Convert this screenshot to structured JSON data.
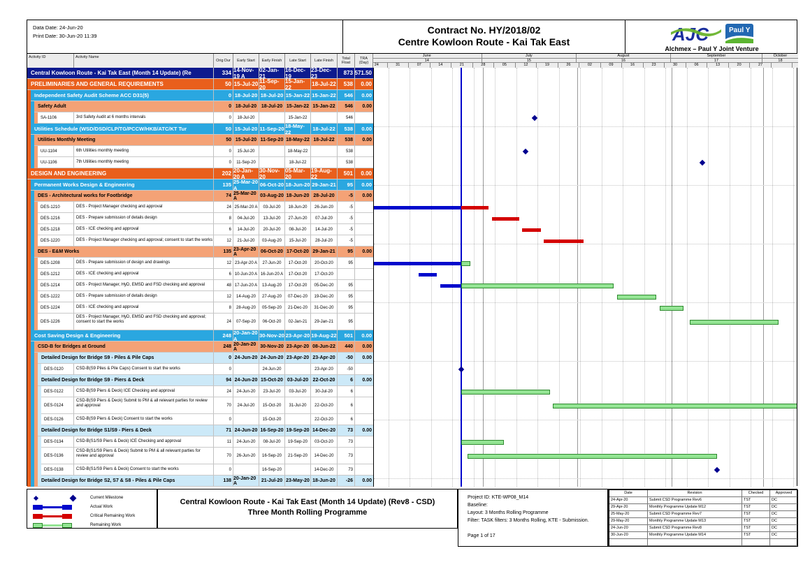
{
  "header": {
    "data_date": "Data Date: 24-Jun-20",
    "print_date": "Print Date: 30-Jun-20 11:39",
    "title_line1": "Contract No. HY/2018/02",
    "title_line2": "Centre Kowloon Route - Kai Tak East",
    "logo_ajc_text": "AJC",
    "logo_pauly_text": "Paul Y",
    "jv_name": "Alchmex – Paul Y Joint Venture"
  },
  "columns": [
    "Activity ID",
    "Activity Name",
    "Orig Dur",
    "Early Start",
    "Early Finish",
    "Late Start",
    "Late Finish",
    "Total Float",
    "TRA (Day)"
  ],
  "timeline": {
    "months": [
      {
        "label": "June",
        "num": "14",
        "start": "2020-05-26",
        "end": "2020-07-01"
      },
      {
        "label": "July",
        "num": "15",
        "start": "2020-07-01",
        "end": "2020-08-01"
      },
      {
        "label": "August",
        "num": "16",
        "start": "2020-08-01",
        "end": "2020-09-01"
      },
      {
        "label": "September",
        "num": "17",
        "start": "2020-09-01",
        "end": "2020-10-01"
      },
      {
        "label": "October",
        "num": "18",
        "start": "2020-10-01",
        "end": "2020-10-13"
      }
    ],
    "weeks": [
      {
        "label": "24",
        "start": "2020-05-24"
      },
      {
        "label": "31",
        "start": "2020-05-31"
      },
      {
        "label": "07",
        "start": "2020-06-07"
      },
      {
        "label": "14",
        "start": "2020-06-14"
      },
      {
        "label": "21",
        "start": "2020-06-21"
      },
      {
        "label": "28",
        "start": "2020-06-28"
      },
      {
        "label": "05",
        "start": "2020-07-05"
      },
      {
        "label": "12",
        "start": "2020-07-12"
      },
      {
        "label": "19",
        "start": "2020-07-19"
      },
      {
        "label": "26",
        "start": "2020-07-26"
      },
      {
        "label": "02",
        "start": "2020-08-02"
      },
      {
        "label": "09",
        "start": "2020-08-09"
      },
      {
        "label": "16",
        "start": "2020-08-16"
      },
      {
        "label": "23",
        "start": "2020-08-23"
      },
      {
        "label": "30",
        "start": "2020-08-30"
      },
      {
        "label": "06",
        "start": "2020-09-06"
      },
      {
        "label": "13",
        "start": "2020-09-13"
      },
      {
        "label": "20",
        "start": "2020-09-20"
      },
      {
        "label": "27",
        "start": "2020-09-27"
      },
      {
        "label": "",
        "start": "2020-10-04"
      },
      {
        "label": "",
        "start": "2020-10-11"
      }
    ],
    "data_date": "2020-06-24"
  },
  "rows": [
    {
      "type": "project",
      "strips": 0,
      "id": "",
      "name": "Central Kowloon Route - Kai Tak East (Month 14 Update) (Re",
      "dur": "334",
      "es": "14-Nov-19 A",
      "ef": "02-Jan-21",
      "ls": "16-Dec-19",
      "lf": "23-Dec-23",
      "tf": "873",
      "tra": "571.50"
    },
    {
      "type": "l1",
      "strips": 0,
      "id": "",
      "name": "PRELIMINARIES AND GENERAL REQUIREMENTS",
      "dur": "50",
      "es": "15-Jul-20",
      "ef": "11-Sep-20",
      "ls": "15-Jan-22",
      "lf": "18-Jul-22",
      "tf": "538",
      "tra": "0.00"
    },
    {
      "type": "l2",
      "strips": 1,
      "id": "",
      "name": "Independent Safety Audit Scheme ACC D31(5)",
      "dur": "0",
      "es": "18-Jul-20",
      "ef": "18-Jul-20",
      "ls": "15-Jan-22",
      "lf": "15-Jan-22",
      "tf": "546",
      "tra": "0.00"
    },
    {
      "type": "l3",
      "strips": 2,
      "id": "",
      "name": "Safety Adult",
      "dur": "0",
      "es": "18-Jul-20",
      "ef": "18-Jul-20",
      "ls": "15-Jan-22",
      "lf": "15-Jan-22",
      "tf": "546",
      "tra": "0.00"
    },
    {
      "type": "task",
      "strips": 3,
      "id": "SA-1106",
      "name": "3rd Safety Audit at 6 months intervals",
      "dur": "0",
      "es": "18-Jul-20",
      "ef": "",
      "ls": "15-Jan-22",
      "lf": "",
      "tf": "546",
      "tra": ""
    },
    {
      "type": "l2",
      "strips": 1,
      "id": "",
      "name": "Utilities Schedule (WSD/DSD/CLP/TG/PCCW/HKB/ATC/KT Tur",
      "dur": "50",
      "es": "15-Jul-20",
      "ef": "11-Sep-20",
      "ls": "18-May-22",
      "lf": "18-Jul-22",
      "tf": "538",
      "tra": "0.00"
    },
    {
      "type": "l3",
      "strips": 2,
      "id": "",
      "name": "Utilities Monthly Meeting",
      "dur": "50",
      "es": "15-Jul-20",
      "ef": "11-Sep-20",
      "ls": "18-May-22",
      "lf": "18-Jul-22",
      "tf": "538",
      "tra": "0.00"
    },
    {
      "type": "task",
      "strips": 3,
      "id": "UU-1104",
      "name": "6th Utilities monthly meeting",
      "dur": "0",
      "es": "15-Jul-20",
      "ef": "",
      "ls": "18-May-22",
      "lf": "",
      "tf": "538",
      "tra": ""
    },
    {
      "type": "task",
      "strips": 3,
      "id": "UU-1106",
      "name": "7th Utilities monthly meeting",
      "dur": "0",
      "es": "11-Sep-20",
      "ef": "",
      "ls": "18-Jul-22",
      "lf": "",
      "tf": "538",
      "tra": ""
    },
    {
      "type": "l1",
      "strips": 0,
      "id": "",
      "name": "DESIGN AND ENGINEERING",
      "dur": "202",
      "es": "20-Jan-20 A",
      "ef": "30-Nov-20",
      "ls": "05-Mar-20",
      "lf": "19-Aug-22",
      "tf": "501",
      "tra": "0.00"
    },
    {
      "type": "l2",
      "strips": 1,
      "id": "",
      "name": "Permanent Works Design & Engineering",
      "dur": "135",
      "es": "25-Mar-20 A",
      "ef": "06-Oct-20",
      "ls": "18-Jun-20",
      "lf": "29-Jan-21",
      "tf": "95",
      "tra": "0.00"
    },
    {
      "type": "l3",
      "strips": 2,
      "id": "",
      "name": "DES - Architectural works for Footbridge",
      "dur": "74",
      "es": "25-Mar-20 A",
      "ef": "03-Aug-20",
      "ls": "18-Jun-20",
      "lf": "28-Jul-20",
      "tf": "-5",
      "tra": "0.00"
    },
    {
      "type": "task",
      "strips": 3,
      "id": "DES-1210",
      "name": "DES - Project Manager checking and approval",
      "dur": "24",
      "es": "25-Mar-20 A",
      "ef": "03-Jul-20",
      "ls": "18-Jun-20",
      "lf": "26-Jun-20",
      "tf": "-5",
      "tra": ""
    },
    {
      "type": "task",
      "strips": 3,
      "id": "DES-1216",
      "name": "DES - Prepare submission of details design",
      "dur": "8",
      "es": "04-Jul-20",
      "ef": "13-Jul-20",
      "ls": "27-Jun-20",
      "lf": "07-Jul-20",
      "tf": "-5",
      "tra": ""
    },
    {
      "type": "task",
      "strips": 3,
      "id": "DES-1218",
      "name": "DES - ICE checking and approval",
      "dur": "6",
      "es": "14-Jul-20",
      "ef": "20-Jul-20",
      "ls": "08-Jul-20",
      "lf": "14-Jul-20",
      "tf": "-5",
      "tra": ""
    },
    {
      "type": "task",
      "strips": 3,
      "id": "DES-1220",
      "name": "DES - Project Manager checking and approval; consent to start the works",
      "dur": "12",
      "es": "21-Jul-20",
      "ef": "03-Aug-20",
      "ls": "15-Jul-20",
      "lf": "28-Jul-20",
      "tf": "-5",
      "tra": ""
    },
    {
      "type": "l3",
      "strips": 2,
      "id": "",
      "name": "DES - E&M Works",
      "dur": "135",
      "es": "23-Apr-20 A",
      "ef": "06-Oct-20",
      "ls": "17-Oct-20",
      "lf": "29-Jan-21",
      "tf": "95",
      "tra": "0.00"
    },
    {
      "type": "task",
      "strips": 3,
      "id": "DES-1208",
      "name": "DES - Prepare submission of design and drawings",
      "dur": "12",
      "es": "23-Apr-20 A",
      "ef": "27-Jun-20",
      "ls": "17-Oct-20",
      "lf": "20-Oct-20",
      "tf": "95",
      "tra": ""
    },
    {
      "type": "task",
      "strips": 3,
      "id": "DES-1212",
      "name": "DES - ICE checking and approval",
      "dur": "6",
      "es": "10-Jun-20 A",
      "ef": "16-Jun-20 A",
      "ls": "17-Oct-20",
      "lf": "17-Oct-20",
      "tf": "",
      "tra": ""
    },
    {
      "type": "task",
      "strips": 3,
      "id": "DES-1214",
      "name": "DES - Project Manager, HyD, EMSD and FSD checking and approval",
      "dur": "48",
      "es": "17-Jun-20 A",
      "ef": "13-Aug-20",
      "ls": "17-Oct-20",
      "lf": "05-Dec-20",
      "tf": "95",
      "tra": ""
    },
    {
      "type": "task",
      "strips": 3,
      "id": "DES-1222",
      "name": "DES - Prepare submission of details design",
      "dur": "12",
      "es": "14-Aug-20",
      "ef": "27-Aug-20",
      "ls": "07-Dec-20",
      "lf": "19-Dec-20",
      "tf": "95",
      "tra": ""
    },
    {
      "type": "task",
      "strips": 3,
      "id": "DES-1224",
      "name": "DES - ICE checking and approval",
      "dur": "8",
      "es": "28-Aug-20",
      "ef": "05-Sep-20",
      "ls": "21-Dec-20",
      "lf": "31-Dec-20",
      "tf": "95",
      "tra": ""
    },
    {
      "type": "task",
      "strips": 3,
      "tall": true,
      "id": "DES-1226",
      "name": "DES - Project Manager, HyD, EMSD and FSD checking and approval; consent to start the works",
      "dur": "24",
      "es": "07-Sep-20",
      "ef": "06-Oct-20",
      "ls": "02-Jan-21",
      "lf": "29-Jan-21",
      "tf": "95",
      "tra": ""
    },
    {
      "type": "l2",
      "strips": 1,
      "id": "",
      "name": "Cost Saving Design & Engineering",
      "dur": "248",
      "es": "20-Jan-20 A",
      "ef": "30-Nov-20",
      "ls": "23-Apr-20",
      "lf": "19-Aug-22",
      "tf": "501",
      "tra": "0.00"
    },
    {
      "type": "l3",
      "strips": 2,
      "id": "",
      "name": "CSD-B for Bridges at Ground",
      "dur": "248",
      "es": "20-Jan-20 A",
      "ef": "30-Nov-20",
      "ls": "23-Apr-20",
      "lf": "08-Jun-22",
      "tf": "440",
      "tra": "0.00"
    },
    {
      "type": "l4",
      "strips": 3,
      "id": "",
      "name": "Detailed Design for Bridge S9 - Piles & Pile Caps",
      "dur": "0",
      "es": "24-Jun-20",
      "ef": "24-Jun-20",
      "ls": "23-Apr-20",
      "lf": "23-Apr-20",
      "tf": "-50",
      "tra": "0.00"
    },
    {
      "type": "task",
      "strips": 4,
      "id": "DES-0120",
      "name": "CSD-B(S9 Piles & Pile Caps) Consent to start the works",
      "dur": "0",
      "es": "",
      "ef": "24-Jun-20",
      "ls": "",
      "lf": "23-Apr-20",
      "tf": "-50",
      "tra": ""
    },
    {
      "type": "l4",
      "strips": 3,
      "id": "",
      "name": "Detailed Design for Bridge S9 - Piers & Deck",
      "dur": "94",
      "es": "24-Jun-20",
      "ef": "15-Oct-20",
      "ls": "03-Jul-20",
      "lf": "22-Oct-20",
      "tf": "6",
      "tra": "0.00"
    },
    {
      "type": "task",
      "strips": 4,
      "id": "DES-0122",
      "name": "CSD-B(S9 Piers & Deck) ICE Checking and approval",
      "dur": "24",
      "es": "24-Jun-20",
      "ef": "23-Jul-20",
      "ls": "03-Jul-20",
      "lf": "30-Jul-20",
      "tf": "6",
      "tra": ""
    },
    {
      "type": "task",
      "strips": 4,
      "tall": true,
      "id": "DES-0124",
      "name": "CSD-B(S9 Piers & Deck) Submit to PM & all relevant parties for review and approval",
      "dur": "70",
      "es": "24-Jul-20",
      "ef": "15-Oct-20",
      "ls": "31-Jul-20",
      "lf": "22-Oct-20",
      "tf": "6",
      "tra": ""
    },
    {
      "type": "task",
      "strips": 4,
      "id": "DES-0126",
      "name": "CSD-B(S9 Piers & Deck) Consent to start the works",
      "dur": "0",
      "es": "",
      "ef": "15-Oct-20",
      "ls": "",
      "lf": "22-Oct-20",
      "tf": "6",
      "tra": ""
    },
    {
      "type": "l4",
      "strips": 3,
      "id": "",
      "name": "Detailed Design for Bridge S1/S9 - Piers & Deck",
      "dur": "71",
      "es": "24-Jun-20",
      "ef": "16-Sep-20",
      "ls": "19-Sep-20",
      "lf": "14-Dec-20",
      "tf": "73",
      "tra": "0.00"
    },
    {
      "type": "task",
      "strips": 4,
      "id": "DES-0134",
      "name": "CSD-B(S1/S9 Piers & Deck) ICE Checking and approval",
      "dur": "11",
      "es": "24-Jun-20",
      "ef": "08-Jul-20",
      "ls": "19-Sep-20",
      "lf": "03-Oct-20",
      "tf": "73",
      "tra": ""
    },
    {
      "type": "task",
      "strips": 4,
      "tall": true,
      "id": "DES-0136",
      "name": "CSD-B(S1/S9 Piers & Deck) Submit to PM & all relevant parties for review and approval",
      "dur": "70",
      "es": "26-Jun-20",
      "ef": "16-Sep-20",
      "ls": "21-Sep-20",
      "lf": "14-Dec-20",
      "tf": "73",
      "tra": ""
    },
    {
      "type": "task",
      "strips": 4,
      "id": "DES-0138",
      "name": "CSD-B(S1/S9 Piers & Deck) Consent to start the works",
      "dur": "0",
      "es": "",
      "ef": "16-Sep-20",
      "ls": "",
      "lf": "14-Dec-20",
      "tf": "73",
      "tra": ""
    },
    {
      "type": "l4",
      "strips": 3,
      "id": "",
      "name": "Detailed Design for Bridge S2, S7 & S8 - Piles & Pile Caps",
      "dur": "138",
      "es": "20-Jan-20 A",
      "ef": "21-Jul-20",
      "ls": "23-May-20",
      "lf": "18-Jun-20",
      "tf": "-26",
      "tra": "0.00"
    }
  ],
  "bars": [
    {
      "row": 4,
      "type": "milestone",
      "start": "2020-07-18"
    },
    {
      "row": 7,
      "type": "milestone",
      "start": "2020-07-15"
    },
    {
      "row": 8,
      "type": "milestone",
      "start": "2020-09-11"
    },
    {
      "row": 12,
      "type": "actual",
      "start": "2020-03-25",
      "end": "2020-06-24"
    },
    {
      "row": 12,
      "type": "critical",
      "start": "2020-06-24",
      "end": "2020-07-03"
    },
    {
      "row": 13,
      "type": "critical",
      "start": "2020-07-04",
      "end": "2020-07-13"
    },
    {
      "row": 14,
      "type": "critical",
      "start": "2020-07-14",
      "end": "2020-07-20"
    },
    {
      "row": 15,
      "type": "critical",
      "start": "2020-07-21",
      "end": "2020-08-03"
    },
    {
      "row": 17,
      "type": "actual",
      "start": "2020-04-23",
      "end": "2020-06-24"
    },
    {
      "row": 17,
      "type": "remaining",
      "start": "2020-06-24",
      "end": "2020-06-27"
    },
    {
      "row": 18,
      "type": "actual",
      "start": "2020-06-10",
      "end": "2020-06-16"
    },
    {
      "row": 19,
      "type": "actual",
      "start": "2020-06-17",
      "end": "2020-06-24"
    },
    {
      "row": 19,
      "type": "remaining",
      "start": "2020-06-24",
      "end": "2020-08-13"
    },
    {
      "row": 20,
      "type": "remaining",
      "start": "2020-08-14",
      "end": "2020-08-27"
    },
    {
      "row": 21,
      "type": "remaining",
      "start": "2020-08-28",
      "end": "2020-09-05"
    },
    {
      "row": 22,
      "type": "remaining",
      "start": "2020-09-07",
      "end": "2020-10-06"
    },
    {
      "row": 26,
      "type": "milestone",
      "start": "2020-06-24"
    },
    {
      "row": 28,
      "type": "remaining",
      "start": "2020-06-24",
      "end": "2020-07-23"
    },
    {
      "row": 29,
      "type": "remaining",
      "start": "2020-07-24",
      "end": "2020-10-15"
    },
    {
      "row": 32,
      "type": "remaining",
      "start": "2020-06-24",
      "end": "2020-07-08"
    },
    {
      "row": 33,
      "type": "remaining",
      "start": "2020-06-26",
      "end": "2020-09-16"
    },
    {
      "row": 34,
      "type": "milestone",
      "start": "2020-09-16"
    }
  ],
  "legend": [
    {
      "type": "milestone",
      "label": "Current Milestone"
    },
    {
      "type": "actual",
      "label": "Actual Work"
    },
    {
      "type": "critical",
      "label": "Critical Remaining Work"
    },
    {
      "type": "remaining",
      "label": "Remaining Work"
    }
  ],
  "footer": {
    "title_line1": "Central Kowloon Route - Kai Tak East (Month 14 Update) (Rev8 - CSD)",
    "title_line2": "Three Month Rolling Programme",
    "info_lines": [
      "Project ID: KTE-WP08_M14",
      "Baseline:",
      "Layout: 3 Months Rolling Programme",
      "Filter: TASK filters: 3 Months Rolling, KTE - Submission."
    ],
    "page_label": "Page 1 of 17"
  },
  "revisions": {
    "headers": [
      "Date",
      "Revision",
      "Checked",
      "Approved"
    ],
    "rows": [
      [
        "24-Apr-20",
        "Submit CSD Programme Rev6",
        "TST",
        "DC"
      ],
      [
        "29-Apr-20",
        "Monthly Programme Update M12",
        "TST",
        "DC"
      ],
      [
        "25-May-20",
        "Submit CSD Programme Rev7",
        "TST",
        "DC"
      ],
      [
        "29-May-20",
        "Monthly Programme Update M13",
        "TST",
        "DC"
      ],
      [
        "24-Jun-20",
        "Submit CSD Programme Rev8",
        "TST",
        "DC"
      ],
      [
        "30-Jun-20",
        "Monthly Programme Update M14",
        "TST",
        "DC"
      ]
    ]
  },
  "colors": {
    "project_row": "#0d1a8e",
    "l1_row": "#e95f1c",
    "l2_row": "#2aa7e0",
    "l3_row": "#f4a276",
    "l4_row": "#cce9f8",
    "actual_bar": "#0008cc",
    "critical_bar": "#d40000",
    "remaining_bar": "#93e493",
    "milestone": "#00008f",
    "data_date_line": "#0008cc"
  }
}
